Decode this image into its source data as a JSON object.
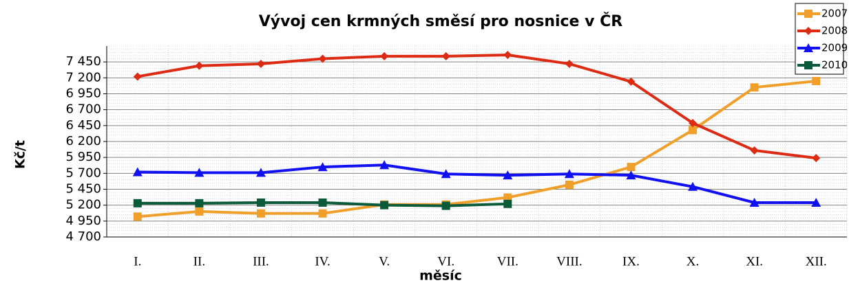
{
  "chart_data": {
    "type": "line",
    "title": "Vývoj cen krmných směsí pro nosnice v ČR",
    "x_label": "měsíc",
    "y_label": "Kč/t",
    "categories": [
      "I.",
      "II.",
      "III.",
      "IV.",
      "V.",
      "VI.",
      "VII.",
      "VIII.",
      "IX.",
      "X.",
      "XI.",
      "XII."
    ],
    "series": [
      {
        "name": "2007",
        "color": "#f0a02a",
        "marker": "square",
        "values": [
          5020,
          5100,
          5070,
          5070,
          5210,
          5210,
          5320,
          5520,
          5800,
          6380,
          7050,
          7150
        ]
      },
      {
        "name": "2008",
        "color": "#dd2a12",
        "marker": "diamond",
        "values": [
          7220,
          7390,
          7420,
          7500,
          7540,
          7540,
          7560,
          7420,
          7140,
          6490,
          6060,
          5940
        ]
      },
      {
        "name": "2009",
        "color": "#1010f0",
        "marker": "triangle",
        "values": [
          5720,
          5710,
          5710,
          5800,
          5830,
          5690,
          5670,
          5690,
          5670,
          5490,
          5240,
          5240
        ]
      },
      {
        "name": "2010",
        "color": "#0b5a3a",
        "marker": "square",
        "values": [
          5230,
          5230,
          5240,
          5240,
          5200,
          5190,
          5220,
          null,
          null,
          null,
          null,
          null
        ]
      }
    ],
    "ylim": [
      4700,
      7700
    ],
    "yticks": [
      {
        "value": 4700,
        "label": "4 700"
      },
      {
        "value": 4950,
        "label": "4 950"
      },
      {
        "value": 5200,
        "label": "5 200"
      },
      {
        "value": 5450,
        "label": "5 450"
      },
      {
        "value": 5700,
        "label": "5 700"
      },
      {
        "value": 5950,
        "label": "5 950"
      },
      {
        "value": 6200,
        "label": "6 200"
      },
      {
        "value": 6450,
        "label": "6 450"
      },
      {
        "value": 6700,
        "label": "6 700"
      },
      {
        "value": 6950,
        "label": "6 950"
      },
      {
        "value": 7200,
        "label": "7 200"
      },
      {
        "value": 7450,
        "label": "7 450"
      }
    ],
    "grid": true,
    "legend": "top-right"
  }
}
